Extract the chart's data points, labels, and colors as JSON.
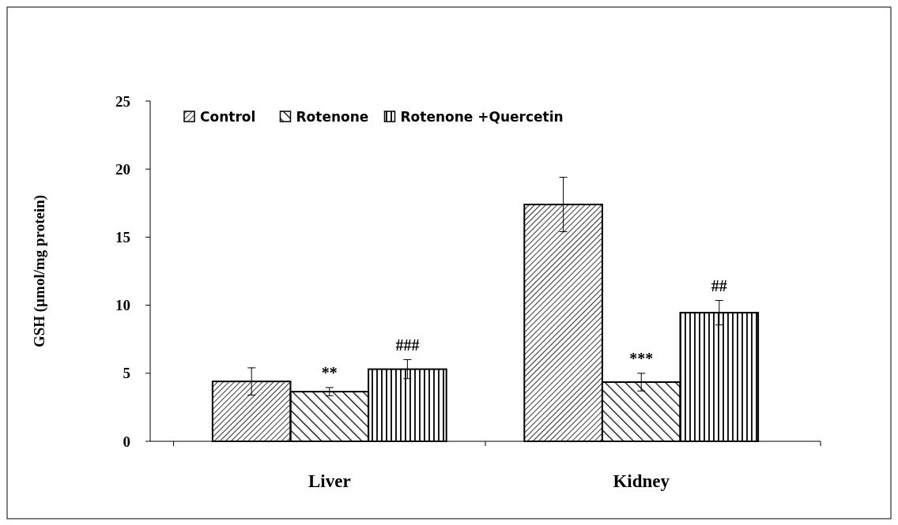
{
  "chart_data": {
    "type": "bar",
    "ylabel": "GSH (µmol/mg protein)",
    "categories": [
      "Liver",
      "Kidney"
    ],
    "series": [
      {
        "name": "Control",
        "color": "#000000",
        "values": [
          4.4,
          17.4
        ],
        "errors": [
          1.0,
          2.0
        ]
      },
      {
        "name": "Rotenone",
        "color": "#000000",
        "values": [
          3.65,
          4.35
        ],
        "errors": [
          0.3,
          0.65
        ],
        "value_labels": [
          "**",
          "***"
        ]
      },
      {
        "name": "Rotenone +Quercetin",
        "color": "#000000",
        "values": [
          5.3,
          9.45
        ],
        "errors": [
          0.7,
          0.9
        ],
        "value_labels": [
          "###",
          "##"
        ]
      }
    ],
    "ylim": [
      0,
      25
    ],
    "yticks": [
      0,
      5,
      10,
      15,
      20,
      25
    ],
    "grid": false,
    "legend": "top left"
  }
}
